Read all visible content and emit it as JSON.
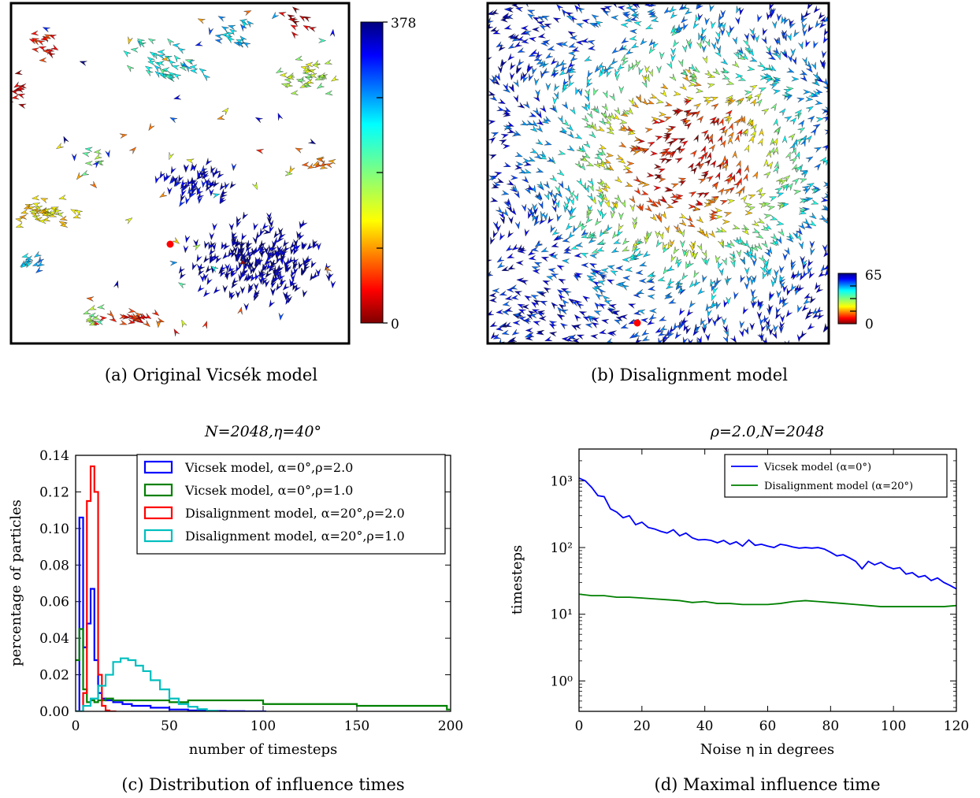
{
  "panels": {
    "a": {
      "caption": "(a) Original Vicsék model",
      "colorbar": {
        "max_label": "378",
        "min_label": "0"
      }
    },
    "b": {
      "caption": "(b) Disalignment model",
      "colorbar": {
        "max_label": "65",
        "min_label": "0"
      }
    },
    "c": {
      "caption": "(c) Distribution of influence times"
    },
    "d": {
      "caption": "(d) Maximal influence time"
    }
  },
  "colors": {
    "blue": "#0000ff",
    "green": "#008000",
    "red": "#ff0000",
    "cyan": "#00bfbf",
    "marker": "#ff0000"
  },
  "chart_data": [
    {
      "type": "line",
      "title": "N=2048,η=40°",
      "xlabel": "number of timesteps",
      "ylabel": "percentage of particles",
      "xlim": [
        0,
        200
      ],
      "ylim": [
        0,
        0.14
      ],
      "xticks": [
        "0",
        "50",
        "100",
        "150",
        "200"
      ],
      "yticks": [
        "0.00",
        "0.02",
        "0.04",
        "0.06",
        "0.08",
        "0.10",
        "0.12",
        "0.14"
      ],
      "legend_position": "top-right",
      "series": [
        {
          "name": "Vicsek model, α=0°,ρ=2.0",
          "color": "#0000ff",
          "x": [
            0,
            2,
            4,
            6,
            8,
            10,
            12,
            14,
            16,
            20,
            25,
            30,
            40,
            50,
            60,
            70,
            80,
            90,
            100
          ],
          "y": [
            0.0,
            0.106,
            0.035,
            0.048,
            0.067,
            0.028,
            0.01,
            0.007,
            0.006,
            0.005,
            0.004,
            0.003,
            0.002,
            0.001,
            0.0005,
            0.0002,
            0.0001,
            0.0,
            0.0
          ]
        },
        {
          "name": "Vicsek model, α=0°,ρ=1.0",
          "color": "#008000",
          "x": [
            0,
            2,
            4,
            6,
            8,
            10,
            12,
            16,
            20,
            30,
            50,
            60,
            100,
            150,
            198
          ],
          "y": [
            0.028,
            0.045,
            0.012,
            0.005,
            0.006,
            0.005,
            0.006,
            0.007,
            0.006,
            0.006,
            0.005,
            0.006,
            0.004,
            0.003,
            0.001
          ]
        },
        {
          "name": "Disalignment model, α=20°,ρ=2.0",
          "color": "#ff0000",
          "x": [
            0,
            2,
            4,
            6,
            8,
            10,
            12,
            14,
            16,
            18,
            20
          ],
          "y": [
            0.0,
            0.0,
            0.01,
            0.115,
            0.134,
            0.12,
            0.02,
            0.003,
            0.0005,
            0.0,
            0.0
          ]
        },
        {
          "name": "Disalignment model, α=20°,ρ=1.0",
          "color": "#00bfbf",
          "x": [
            0,
            4,
            8,
            12,
            16,
            20,
            24,
            28,
            32,
            36,
            40,
            45,
            50,
            55,
            60,
            65,
            70,
            75
          ],
          "y": [
            0.0,
            0.003,
            0.007,
            0.014,
            0.02,
            0.027,
            0.029,
            0.028,
            0.025,
            0.022,
            0.017,
            0.012,
            0.007,
            0.004,
            0.0025,
            0.0012,
            0.0004,
            0.0
          ]
        }
      ]
    },
    {
      "type": "line",
      "title": "ρ=2.0,N=2048",
      "xlabel": "Noise η in degrees",
      "ylabel": "timesteps",
      "yscale": "log",
      "xlim": [
        0,
        120
      ],
      "ylim": [
        0.35,
        3000
      ],
      "xticks": [
        "0",
        "20",
        "40",
        "60",
        "80",
        "100",
        "120"
      ],
      "yticks": [
        "10⁰",
        "10¹",
        "10²",
        "10³"
      ],
      "legend_position": "top-right",
      "series": [
        {
          "name": "Vicsek model (α=0°)",
          "color": "#0000ff",
          "x": [
            0,
            2,
            4,
            6,
            8,
            10,
            12,
            14,
            16,
            18,
            20,
            22,
            24,
            26,
            28,
            30,
            32,
            34,
            36,
            38,
            40,
            42,
            44,
            46,
            48,
            50,
            52,
            54,
            56,
            58,
            60,
            62,
            64,
            66,
            68,
            70,
            72,
            74,
            76,
            78,
            80,
            82,
            84,
            86,
            88,
            90,
            92,
            94,
            96,
            98,
            100,
            102,
            104,
            106,
            108,
            110,
            112,
            114,
            116,
            118,
            120
          ],
          "y": [
            1100,
            1000,
            800,
            600,
            580,
            380,
            340,
            280,
            300,
            220,
            240,
            200,
            190,
            175,
            165,
            185,
            150,
            165,
            140,
            130,
            132,
            128,
            118,
            128,
            112,
            122,
            105,
            130,
            108,
            112,
            105,
            100,
            112,
            108,
            102,
            98,
            100,
            98,
            100,
            95,
            85,
            75,
            78,
            70,
            62,
            48,
            62,
            55,
            60,
            52,
            48,
            50,
            40,
            42,
            36,
            38,
            32,
            35,
            30,
            27,
            24
          ]
        },
        {
          "name": "Disalignment model (α=20°)",
          "color": "#008000",
          "x": [
            0,
            4,
            8,
            12,
            16,
            20,
            24,
            28,
            32,
            36,
            40,
            44,
            48,
            52,
            56,
            60,
            64,
            68,
            72,
            76,
            80,
            84,
            88,
            92,
            96,
            100,
            104,
            108,
            112,
            116,
            120
          ],
          "y": [
            20,
            19,
            19,
            18,
            18,
            17.5,
            17,
            16.5,
            16,
            15,
            15.5,
            14.5,
            14.5,
            14,
            14,
            14,
            14.5,
            15.5,
            16,
            15.5,
            15,
            14.5,
            14,
            13.5,
            13,
            13,
            13,
            13,
            13,
            13,
            13.5
          ]
        }
      ]
    }
  ]
}
